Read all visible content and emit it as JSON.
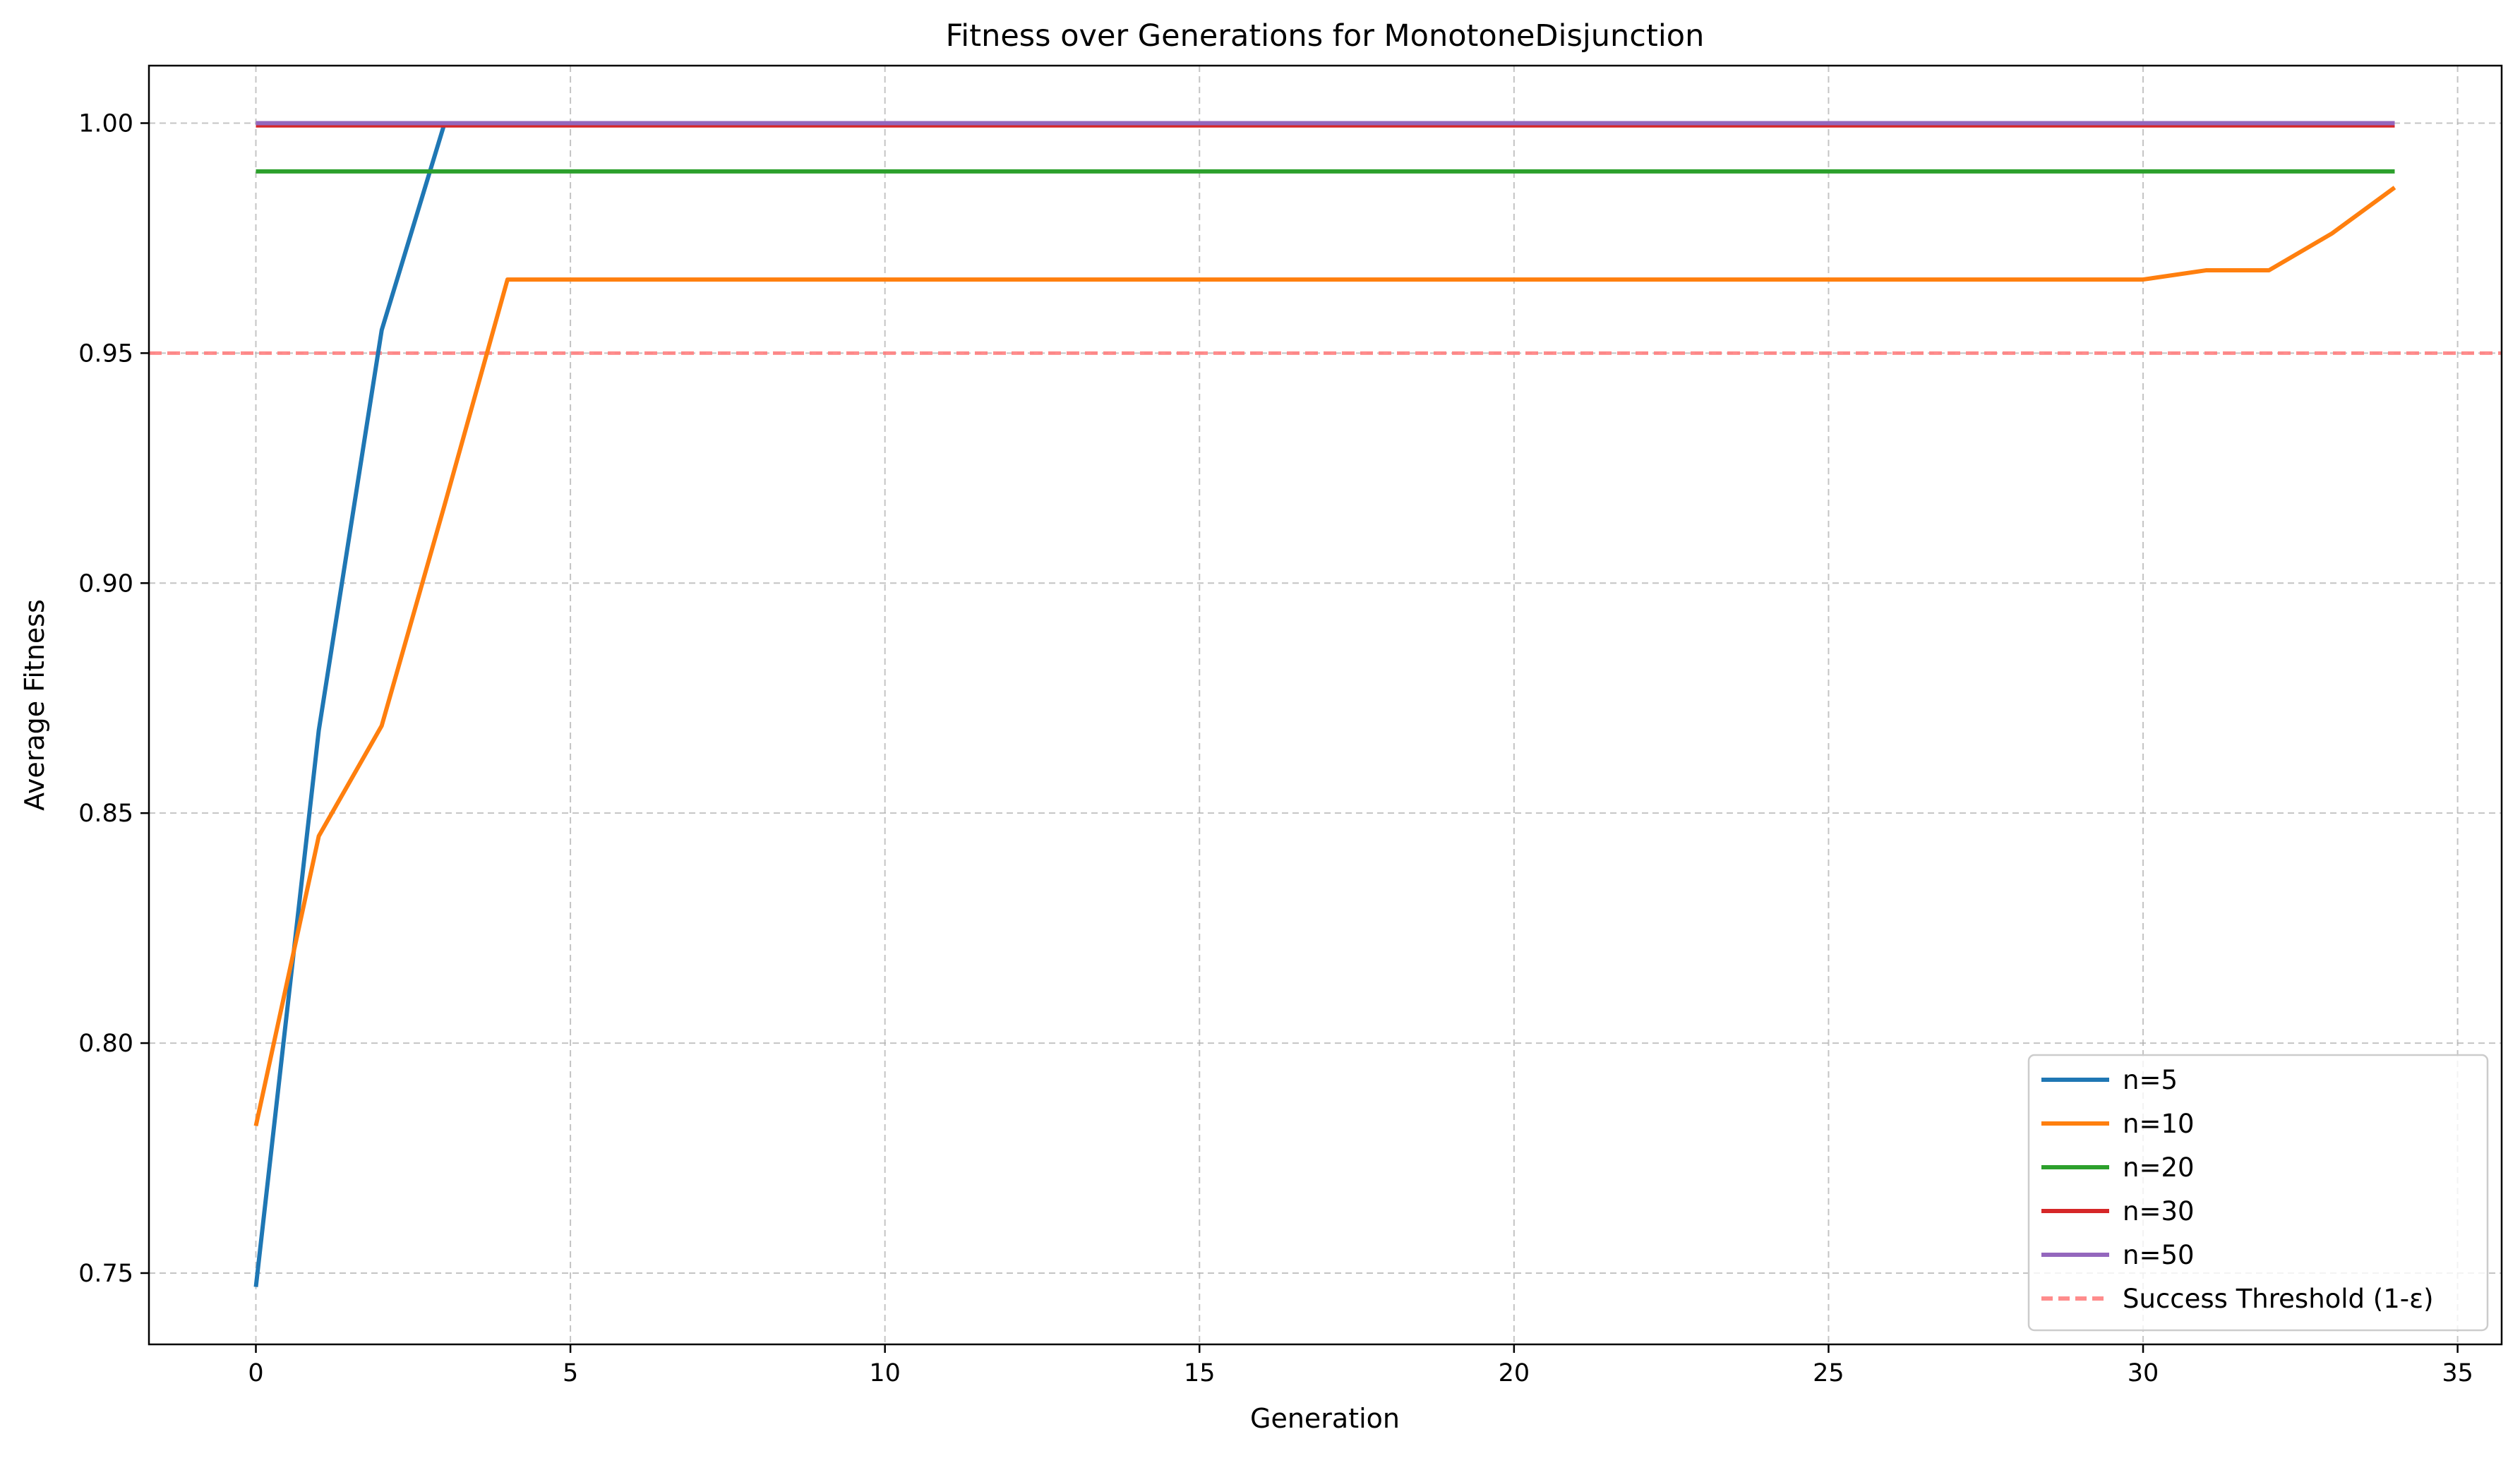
{
  "chart_data": {
    "type": "line",
    "title": "Fitness over Generations for MonotoneDisjunction",
    "xlabel": "Generation",
    "ylabel": "Average Fitness",
    "xlim": [
      -1.7,
      35.7
    ],
    "ylim": [
      0.7345,
      1.0125
    ],
    "xticks": [
      0,
      5,
      10,
      15,
      20,
      25,
      30,
      35
    ],
    "yticks": [
      0.75,
      0.8,
      0.85,
      0.9,
      0.95,
      1.0
    ],
    "xtick_labels": [
      "0",
      "5",
      "10",
      "15",
      "20",
      "25",
      "30",
      "35"
    ],
    "ytick_labels": [
      "0.75",
      "0.80",
      "0.85",
      "0.90",
      "0.95",
      "1.00"
    ],
    "grid": true,
    "legend_position": "bottom-right",
    "series": [
      {
        "name": "n=5",
        "color": "#1f77b4",
        "x": [
          0,
          1,
          2,
          3,
          4,
          5,
          6,
          7,
          8,
          9,
          10,
          11,
          12,
          13,
          14,
          15,
          16,
          17,
          18,
          19,
          20,
          21,
          22,
          23,
          24,
          25,
          26,
          27,
          28,
          29,
          30,
          31,
          32,
          33,
          34
        ],
        "values": [
          0.747,
          0.868,
          0.955,
          1.0,
          1.0,
          1.0,
          1.0,
          1.0,
          1.0,
          1.0,
          1.0,
          1.0,
          1.0,
          1.0,
          1.0,
          1.0,
          1.0,
          1.0,
          1.0,
          1.0,
          1.0,
          1.0,
          1.0,
          1.0,
          1.0,
          1.0,
          1.0,
          1.0,
          1.0,
          1.0,
          1.0,
          1.0,
          1.0,
          1.0,
          1.0
        ]
      },
      {
        "name": "n=10",
        "color": "#ff7f0e",
        "x": [
          0,
          1,
          2,
          3,
          4,
          5,
          6,
          7,
          8,
          9,
          10,
          11,
          12,
          13,
          14,
          15,
          16,
          17,
          18,
          19,
          20,
          21,
          22,
          23,
          24,
          25,
          26,
          27,
          28,
          29,
          30,
          31,
          32,
          33,
          34
        ],
        "values": [
          0.782,
          0.845,
          0.869,
          0.917,
          0.966,
          0.966,
          0.966,
          0.966,
          0.966,
          0.966,
          0.966,
          0.966,
          0.966,
          0.966,
          0.966,
          0.966,
          0.966,
          0.966,
          0.966,
          0.966,
          0.966,
          0.966,
          0.966,
          0.966,
          0.966,
          0.966,
          0.966,
          0.966,
          0.966,
          0.966,
          0.966,
          0.968,
          0.968,
          0.976,
          0.986
        ]
      },
      {
        "name": "n=20",
        "color": "#2ca02c",
        "x": [
          0,
          34
        ],
        "values": [
          0.9895,
          0.9895
        ]
      },
      {
        "name": "n=30",
        "color": "#d62728",
        "x": [
          0,
          34
        ],
        "values": [
          0.9995,
          0.9995
        ]
      },
      {
        "name": "n=50",
        "color": "#9467bd",
        "x": [
          0,
          34
        ],
        "values": [
          1.0,
          1.0
        ]
      }
    ],
    "threshold": {
      "name": "Success Threshold (1-ε)",
      "value": 0.95,
      "color": "#ff7f7f",
      "style": "dashed"
    }
  }
}
